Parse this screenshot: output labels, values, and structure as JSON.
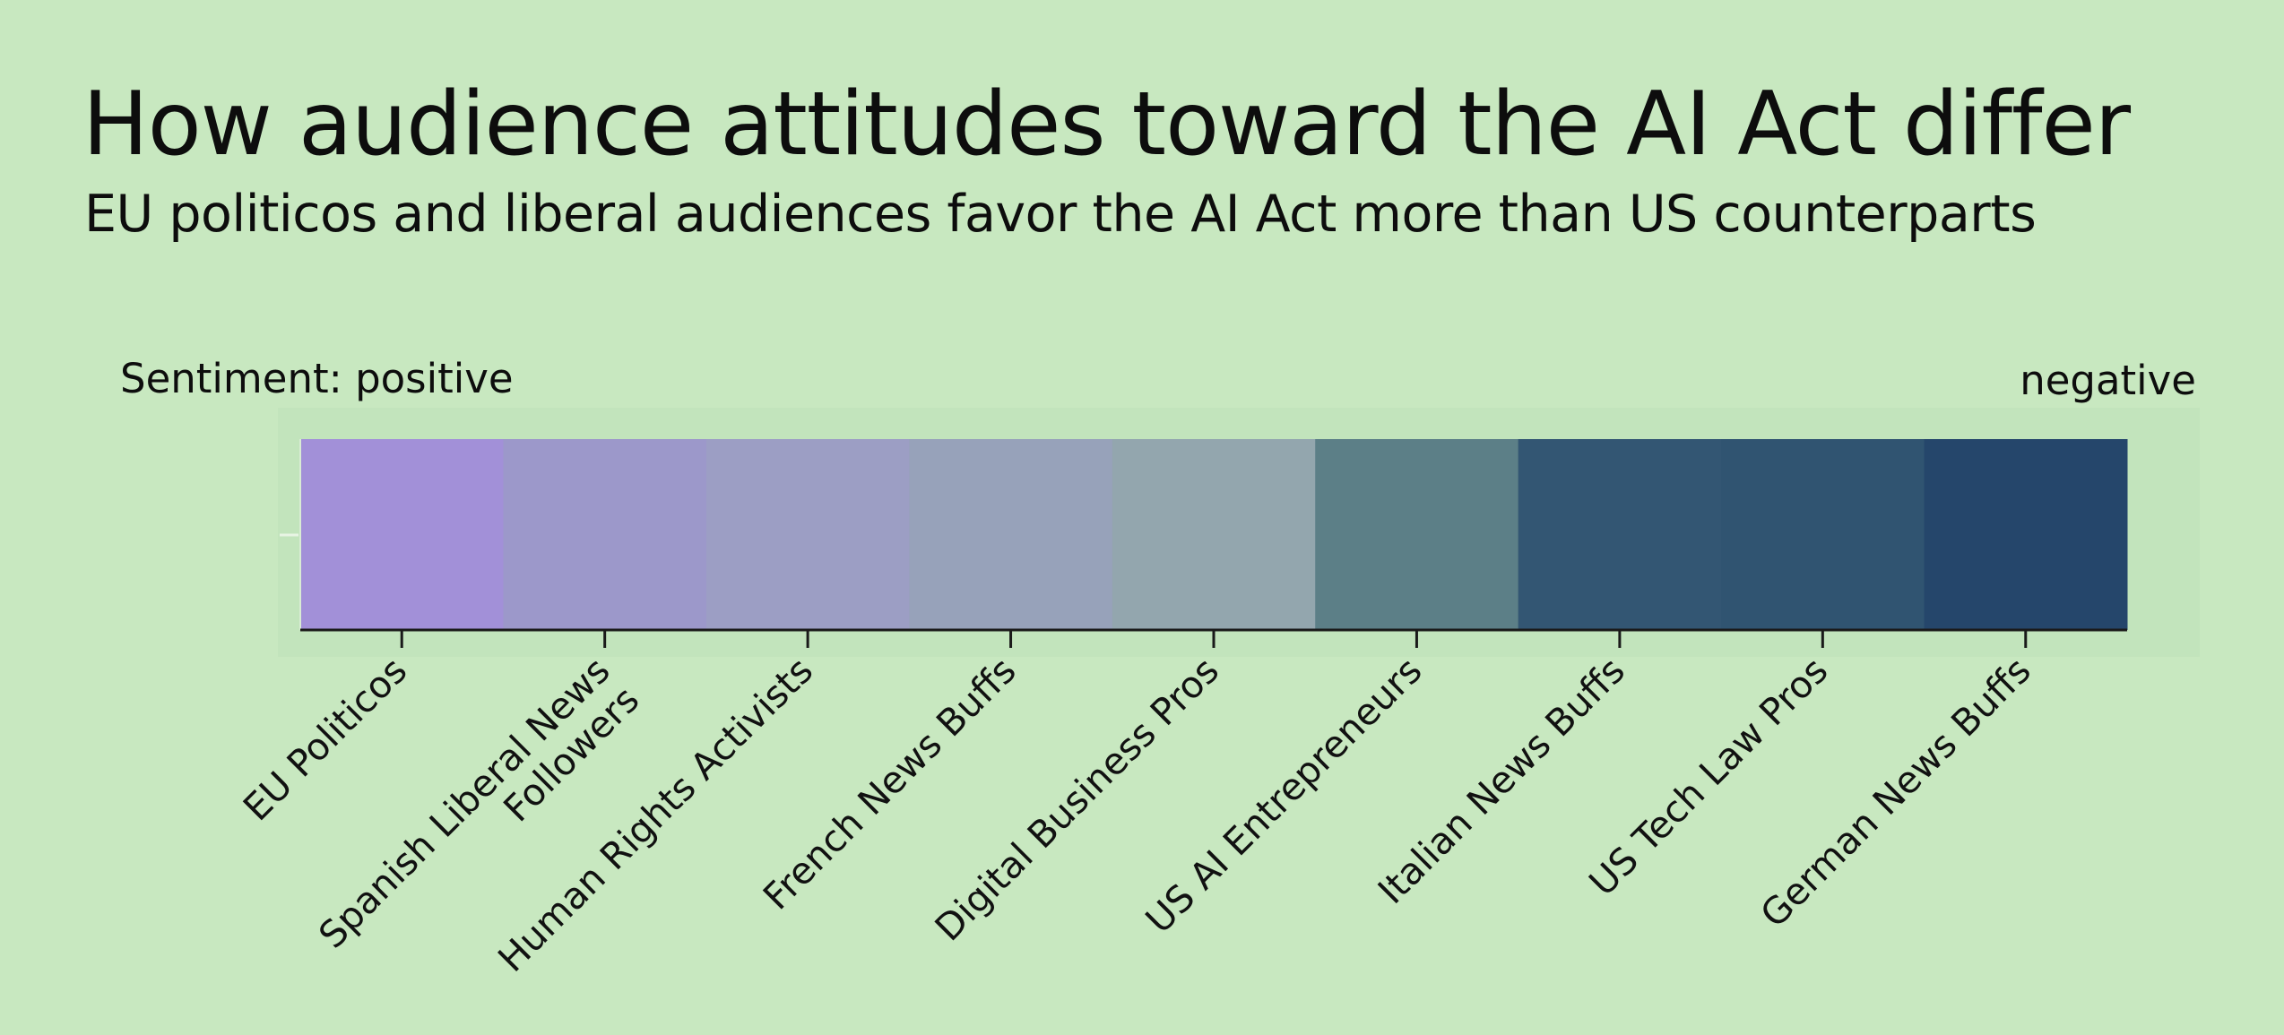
{
  "chart_data": {
    "type": "heatmap",
    "title": "How audience attitudes toward the AI Act differ",
    "subtitle": "EU politicos and liberal audiences favor the AI Act more than US counterparts",
    "legend": {
      "positive_label": "Sentiment: positive",
      "negative_label": "negative",
      "placement": "top"
    },
    "categories": [
      "EU Politicos",
      "Spanish Liberal News Followers",
      "Human Rights Activists",
      "French News Buffs",
      "Digital Business Pros",
      "US AI Entrepreneurs",
      "Italian News Buffs",
      "US Tech Law Pros",
      "German News Buffs"
    ],
    "colors": [
      "#a290d8",
      "#9c98ca",
      "#9c9ec4",
      "#97a2ba",
      "#93a6ae",
      "#5c7f87",
      "#335673",
      "#305471",
      "#25466b"
    ],
    "grid": false
  }
}
